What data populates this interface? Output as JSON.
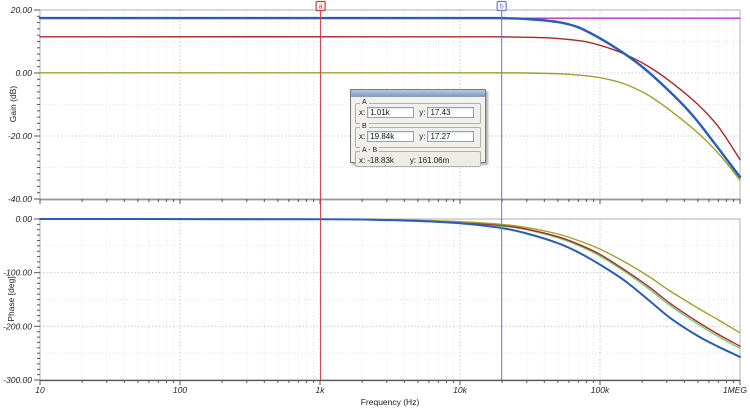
{
  "figure": {
    "xlabel": "Frequency (Hz)",
    "gain_ylabel": "Gain (dB)",
    "phase_ylabel": "Phase [deg]"
  },
  "cursors": {
    "a": {
      "label": "a",
      "freq_hz": 1010,
      "color": "#d03c3c"
    },
    "b": {
      "label": "b",
      "freq_hz": 19840,
      "color": "#7373e0"
    }
  },
  "measurement_panel": {
    "groups": [
      {
        "label": "A",
        "x_label": "x:",
        "x_value": "1.01k",
        "y_label": "y:",
        "y_value": "17.43"
      },
      {
        "label": "B",
        "x_label": "x:",
        "x_value": "19.84k",
        "y_label": "y:",
        "y_value": "17.27"
      },
      {
        "label": "A - B",
        "x_label": "x:",
        "x_value": "-18.83k",
        "y_label": "y:",
        "y_value": "161.06m"
      }
    ]
  },
  "chart_data": [
    {
      "type": "line",
      "name": "gain",
      "xscale": "log",
      "xlim": [
        10,
        1000000
      ],
      "ylim": [
        -40,
        20
      ],
      "ylabel": "Gain (dB)",
      "xlabel": "",
      "grid": true,
      "ytick_values": [
        20,
        0,
        -20,
        -40
      ],
      "ytick_labels": [
        "20.00",
        "0.00",
        "-20.00",
        "-40.00"
      ],
      "y_minor_grid_step": 10,
      "y_minor_tick_step": 2,
      "xtick_values": [
        10,
        100,
        1000,
        10000,
        100000,
        1000000
      ],
      "xtick_labels": [
        "10",
        "100",
        "1k",
        "10k",
        "100k",
        "1MEG"
      ],
      "show_x_tick_labels": false,
      "series": [
        {
          "name": "magenta-ideal",
          "color": "#b535c0",
          "width": 1.4,
          "points": [
            [
              10,
              17.4
            ],
            [
              1000000,
              17.4
            ]
          ]
        },
        {
          "name": "green",
          "color": "#72cc72",
          "width": 1.4,
          "points": [
            [
              10,
              17.35
            ],
            [
              10000,
              17.35
            ],
            [
              20000,
              17.3
            ],
            [
              30000,
              17.05
            ],
            [
              50000,
              16.0
            ],
            [
              70000,
              14.3
            ],
            [
              100000,
              10.8
            ],
            [
              140000,
              6.8
            ],
            [
              200000,
              1.8
            ],
            [
              300000,
              -5.2
            ],
            [
              450000,
              -13.2
            ],
            [
              650000,
              -22.2
            ],
            [
              1000000,
              -33.6
            ]
          ]
        },
        {
          "name": "red",
          "color": "#a62a2a",
          "width": 1.4,
          "points": [
            [
              10,
              11.5
            ],
            [
              10000,
              11.5
            ],
            [
              20000,
              11.45
            ],
            [
              40000,
              11.2
            ],
            [
              70000,
              10.3
            ],
            [
              100000,
              8.8
            ],
            [
              150000,
              6.0
            ],
            [
              220000,
              2.2
            ],
            [
              320000,
              -2.8
            ],
            [
              500000,
              -10.0
            ],
            [
              700000,
              -17.0
            ],
            [
              1000000,
              -27.5
            ]
          ]
        },
        {
          "name": "olive",
          "color": "#a0a02c",
          "width": 1.4,
          "points": [
            [
              10,
              0.05
            ],
            [
              10000,
              0.05
            ],
            [
              30000,
              0.0
            ],
            [
              60000,
              -0.4
            ],
            [
              100000,
              -1.5
            ],
            [
              150000,
              -3.5
            ],
            [
              220000,
              -7.0
            ],
            [
              320000,
              -12.0
            ],
            [
              500000,
              -19.0
            ],
            [
              700000,
              -25.5
            ],
            [
              1000000,
              -34.0
            ]
          ]
        },
        {
          "name": "blue",
          "color": "#2a5db8",
          "width": 2.4,
          "points": [
            [
              10,
              17.43
            ],
            [
              10000,
              17.43
            ],
            [
              20000,
              17.4
            ],
            [
              30000,
              17.15
            ],
            [
              50000,
              16.2
            ],
            [
              70000,
              14.5
            ],
            [
              100000,
              11.0
            ],
            [
              140000,
              7.0
            ],
            [
              200000,
              2.0
            ],
            [
              300000,
              -5.0
            ],
            [
              450000,
              -13.0
            ],
            [
              650000,
              -22.0
            ],
            [
              1000000,
              -33.0
            ]
          ]
        }
      ]
    },
    {
      "type": "line",
      "name": "phase",
      "xscale": "log",
      "xlim": [
        10,
        1000000
      ],
      "ylim": [
        -300,
        0
      ],
      "ylabel": "Phase [deg]",
      "xlabel": "Frequency (Hz)",
      "grid": true,
      "ytick_values": [
        0,
        -100,
        -200,
        -300
      ],
      "ytick_labels": [
        "0.00",
        "-100.00",
        "-200.00",
        "-300.00"
      ],
      "y_minor_grid_step": 50,
      "y_minor_tick_step": 10,
      "xtick_values": [
        10,
        100,
        1000,
        10000,
        100000,
        1000000
      ],
      "xtick_labels": [
        "10",
        "100",
        "1k",
        "10k",
        "100k",
        "1MEG"
      ],
      "show_x_tick_labels": true,
      "series": [
        {
          "name": "green",
          "color": "#72cc72",
          "width": 1.4,
          "points": [
            [
              10,
              0
            ],
            [
              1000,
              -0.4
            ],
            [
              3000,
              -1.6
            ],
            [
              6000,
              -3.8
            ],
            [
              10000,
              -6.5
            ],
            [
              20000,
              -13
            ],
            [
              30000,
              -20
            ],
            [
              50000,
              -35
            ],
            [
              70000,
              -49
            ],
            [
              100000,
              -69
            ],
            [
              150000,
              -98
            ],
            [
              220000,
              -129
            ],
            [
              320000,
              -162
            ],
            [
              500000,
              -196
            ],
            [
              700000,
              -219
            ],
            [
              1000000,
              -241
            ]
          ]
        },
        {
          "name": "red",
          "color": "#a62a2a",
          "width": 1.4,
          "points": [
            [
              10,
              0
            ],
            [
              1000,
              -0.3
            ],
            [
              3000,
              -1.5
            ],
            [
              6000,
              -3.5
            ],
            [
              10000,
              -6
            ],
            [
              20000,
              -12
            ],
            [
              30000,
              -19
            ],
            [
              50000,
              -33
            ],
            [
              70000,
              -47
            ],
            [
              100000,
              -66
            ],
            [
              150000,
              -95
            ],
            [
              220000,
              -125
            ],
            [
              320000,
              -158
            ],
            [
              500000,
              -192
            ],
            [
              700000,
              -215
            ],
            [
              1000000,
              -237
            ]
          ]
        },
        {
          "name": "olive",
          "color": "#a0a02c",
          "width": 1.4,
          "points": [
            [
              10,
              0
            ],
            [
              1000,
              -0.3
            ],
            [
              3000,
              -1.2
            ],
            [
              6000,
              -3
            ],
            [
              10000,
              -5
            ],
            [
              20000,
              -10
            ],
            [
              30000,
              -16
            ],
            [
              50000,
              -28
            ],
            [
              70000,
              -40
            ],
            [
              100000,
              -56
            ],
            [
              150000,
              -80
            ],
            [
              220000,
              -106
            ],
            [
              320000,
              -135
            ],
            [
              500000,
              -166
            ],
            [
              700000,
              -188
            ],
            [
              1000000,
              -212
            ]
          ]
        },
        {
          "name": "blue",
          "color": "#2a5db8",
          "width": 2.0,
          "points": [
            [
              10,
              0
            ],
            [
              1000,
              -0.5
            ],
            [
              3000,
              -2
            ],
            [
              6000,
              -4.5
            ],
            [
              10000,
              -8
            ],
            [
              20000,
              -17
            ],
            [
              30000,
              -27
            ],
            [
              50000,
              -45
            ],
            [
              70000,
              -62
            ],
            [
              100000,
              -85
            ],
            [
              150000,
              -115
            ],
            [
              220000,
              -150
            ],
            [
              320000,
              -185
            ],
            [
              500000,
              -218
            ],
            [
              700000,
              -238
            ],
            [
              1000000,
              -257
            ]
          ]
        }
      ]
    }
  ]
}
